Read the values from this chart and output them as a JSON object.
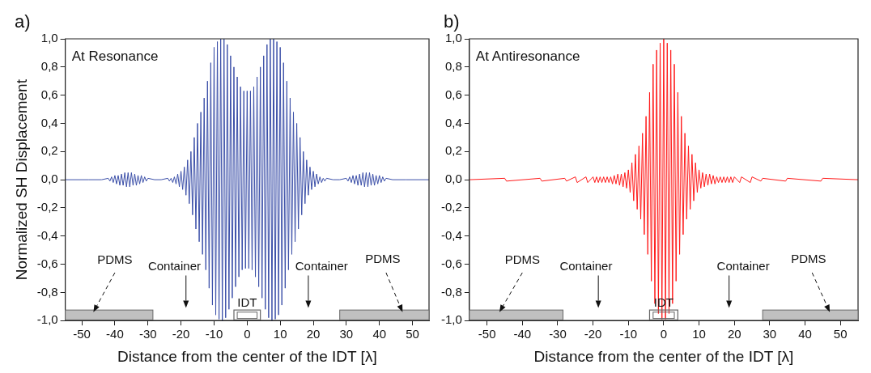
{
  "chart_data": [
    {
      "type": "line",
      "title": "a)",
      "xlabel": "Distance from the center of the IDT [λ]",
      "ylabel": "Normalized SH Displacement",
      "xlim": [
        -55,
        55
      ],
      "xticks": [
        -50,
        -40,
        -30,
        -20,
        -10,
        0,
        10,
        20,
        30,
        40,
        50
      ],
      "ylim": [
        -1,
        1
      ],
      "yticks": [
        {
          "value": -1,
          "label": "-1,0"
        },
        {
          "value": -0.8,
          "label": "-0,8"
        },
        {
          "value": -0.6,
          "label": "-0,6"
        },
        {
          "value": -0.4,
          "label": "-0,4"
        },
        {
          "value": -0.2,
          "label": "-0,2"
        },
        {
          "value": 0,
          "label": "0,0"
        },
        {
          "value": 0.2,
          "label": "0,2"
        },
        {
          "value": 0.4,
          "label": "0,4"
        },
        {
          "value": 0.6,
          "label": "0,6"
        },
        {
          "value": 0.8,
          "label": "0,8"
        },
        {
          "value": 1,
          "label": "1,0"
        }
      ],
      "series": [
        {
          "color": "#3b4fa8",
          "x": [
            -55,
            -48,
            -44,
            -42,
            -41.5,
            -41,
            -40.5,
            -40,
            -39.5,
            -39,
            -38.5,
            -38,
            -37.5,
            -37,
            -36.5,
            -36,
            -35.5,
            -35,
            -34.5,
            -34,
            -33.5,
            -33,
            -32.5,
            -32,
            -31.5,
            -31,
            -30.5,
            -30,
            -28,
            -26,
            -24,
            -23.5,
            -23,
            -22.5,
            -22,
            -21.5,
            -21,
            -20.5,
            -20,
            -19.5,
            -19,
            -18.5,
            -18,
            -17.5,
            -17,
            -16.5,
            -16,
            -15.5,
            -15,
            -14.5,
            -14,
            -13.5,
            -13,
            -12.5,
            -12,
            -11.5,
            -11,
            -10.5,
            -10,
            -9.5,
            -9,
            -8.5,
            -8,
            -7.5,
            -7,
            -6.5,
            -6,
            -5.5,
            -5,
            -4.5,
            -4,
            -3.5,
            -3,
            -2.5,
            -2,
            -1.5,
            -1,
            -0.5,
            0,
            0.5,
            1,
            1.5,
            2,
            2.5,
            3,
            3.5,
            4,
            4.5,
            5,
            5.5,
            6,
            6.5,
            7,
            7.5,
            8,
            8.5,
            9,
            9.5,
            10,
            10.5,
            11,
            11.5,
            12,
            12.5,
            13,
            13.5,
            14,
            14.5,
            15,
            15.5,
            16,
            16.5,
            17,
            17.5,
            18,
            18.5,
            19,
            19.5,
            20,
            20.5,
            21,
            21.5,
            22,
            22.5,
            23,
            23.5,
            24,
            26,
            28,
            30,
            30.5,
            31,
            31.5,
            32,
            32.5,
            33,
            33.5,
            34,
            34.5,
            35,
            35.5,
            36,
            36.5,
            37,
            37.5,
            38,
            38.5,
            39,
            39.5,
            40,
            40.5,
            41,
            41.5,
            42,
            44,
            48,
            55
          ],
          "values": [
            0,
            0,
            0,
            0.01,
            -0.01,
            0.02,
            -0.02,
            0.03,
            -0.03,
            0.03,
            -0.04,
            0.04,
            -0.04,
            0.05,
            -0.05,
            0.05,
            -0.05,
            0.05,
            -0.04,
            0.04,
            -0.04,
            0.03,
            -0.03,
            0.03,
            -0.02,
            0.02,
            -0.01,
            0.01,
            0,
            0,
            0.01,
            -0.01,
            0.01,
            -0.02,
            0.02,
            -0.03,
            0.04,
            -0.05,
            0.06,
            -0.07,
            0.09,
            -0.11,
            0.14,
            -0.17,
            0.2,
            -0.25,
            0.3,
            -0.35,
            0.4,
            -0.44,
            0.48,
            -0.53,
            0.58,
            -0.64,
            0.7,
            -0.77,
            0.83,
            -0.89,
            0.94,
            -0.96,
            0.98,
            -0.99,
            1.0,
            -1.0,
            1.0,
            -0.98,
            0.96,
            -0.92,
            0.88,
            -0.84,
            0.8,
            -0.76,
            0.73,
            -0.69,
            0.66,
            -0.64,
            0.63,
            -0.63,
            0.63,
            -0.63,
            0.63,
            -0.64,
            0.66,
            -0.69,
            0.73,
            -0.76,
            0.8,
            -0.84,
            0.88,
            -0.92,
            0.96,
            -0.98,
            1.0,
            -1.0,
            1.0,
            -0.99,
            0.98,
            -0.96,
            0.94,
            -0.89,
            0.83,
            -0.77,
            0.7,
            -0.64,
            0.58,
            -0.53,
            0.48,
            -0.44,
            0.4,
            -0.35,
            0.3,
            -0.25,
            0.2,
            -0.17,
            0.14,
            -0.11,
            0.09,
            -0.07,
            0.06,
            -0.05,
            0.04,
            -0.03,
            0.02,
            -0.02,
            0.01,
            -0.01,
            0.01,
            0,
            0,
            0.01,
            -0.01,
            0.02,
            -0.02,
            0.03,
            -0.03,
            0.03,
            -0.04,
            0.04,
            -0.04,
            0.05,
            -0.05,
            0.05,
            -0.05,
            0.05,
            -0.04,
            0.04,
            -0.04,
            0.03,
            -0.03,
            0.03,
            -0.02,
            0.02,
            -0.01,
            0.01,
            0,
            0,
            0
          ]
        }
      ],
      "annotations": [
        "At Resonance",
        "PDMS",
        "Container",
        "IDT",
        "Container",
        "PDMS"
      ]
    },
    {
      "type": "line",
      "title": "b)",
      "xlabel": "Distance from the center of the IDT [λ]",
      "xlim": [
        -55,
        55
      ],
      "xticks": [
        -50,
        -40,
        -30,
        -20,
        -10,
        0,
        10,
        20,
        30,
        40,
        50
      ],
      "ylim": [
        -1,
        1
      ],
      "yticks": [
        {
          "value": -1,
          "label": "-1,0"
        },
        {
          "value": -0.8,
          "label": "-0,8"
        },
        {
          "value": -0.6,
          "label": "-0,6"
        },
        {
          "value": -0.4,
          "label": "-0,4"
        },
        {
          "value": -0.2,
          "label": "-0,2"
        },
        {
          "value": 0,
          "label": "0,0"
        },
        {
          "value": 0.2,
          "label": "0,2"
        },
        {
          "value": 0.4,
          "label": "0,4"
        },
        {
          "value": 0.6,
          "label": "0,6"
        },
        {
          "value": 0.8,
          "label": "0,8"
        },
        {
          "value": 1,
          "label": "1,0"
        }
      ],
      "series": [
        {
          "color": "#ff1a1a",
          "x": [
            -55,
            -45,
            -44.5,
            -35,
            -34.5,
            -28,
            -27.5,
            -25,
            -24.5,
            -22,
            -21.5,
            -20,
            -19.5,
            -19,
            -18.5,
            -18,
            -17.5,
            -17,
            -16.5,
            -16,
            -15.5,
            -15,
            -14.5,
            -14,
            -13.5,
            -13,
            -12.5,
            -12,
            -11.5,
            -11,
            -10.5,
            -10,
            -9.5,
            -9,
            -8.5,
            -8,
            -7.5,
            -7,
            -6.5,
            -6,
            -5.5,
            -5,
            -4.5,
            -4,
            -3.5,
            -3,
            -2.5,
            -2,
            -1.5,
            -1,
            -0.5,
            0,
            0.5,
            1,
            1.5,
            2,
            2.5,
            3,
            3.5,
            4,
            4.5,
            5,
            5.5,
            6,
            6.5,
            7,
            7.5,
            8,
            8.5,
            9,
            9.5,
            10,
            10.5,
            11,
            11.5,
            12,
            12.5,
            13,
            13.5,
            14,
            14.5,
            15,
            15.5,
            16,
            16.5,
            17,
            17.5,
            18,
            18.5,
            19,
            19.5,
            20,
            21.5,
            22,
            24.5,
            25,
            27.5,
            28,
            34.5,
            35,
            44.5,
            45,
            55
          ],
          "values": [
            0,
            0.01,
            -0.01,
            0.01,
            -0.01,
            0.01,
            -0.01,
            0.02,
            -0.02,
            0.02,
            -0.02,
            0.02,
            -0.02,
            0.02,
            -0.02,
            0.02,
            -0.02,
            0.02,
            -0.02,
            0.02,
            -0.02,
            0.02,
            -0.03,
            0.03,
            -0.03,
            0.04,
            -0.04,
            0.04,
            -0.05,
            0.05,
            -0.06,
            0.07,
            -0.09,
            0.12,
            -0.15,
            0.18,
            -0.21,
            0.24,
            -0.28,
            0.33,
            -0.39,
            0.45,
            -0.53,
            0.62,
            -0.72,
            0.82,
            -0.88,
            0.92,
            -0.95,
            0.97,
            -0.99,
            1.0,
            -0.99,
            0.97,
            -0.95,
            0.92,
            -0.88,
            0.82,
            -0.72,
            0.62,
            -0.53,
            0.45,
            -0.39,
            0.33,
            -0.28,
            0.24,
            -0.21,
            0.18,
            -0.15,
            0.12,
            -0.09,
            0.07,
            -0.06,
            0.05,
            -0.05,
            0.04,
            -0.04,
            0.04,
            -0.03,
            0.03,
            -0.03,
            0.02,
            -0.02,
            0.02,
            -0.02,
            0.02,
            -0.02,
            0.02,
            -0.02,
            0.02,
            -0.02,
            0.02,
            -0.02,
            0.02,
            -0.02,
            0.02,
            -0.01,
            0.01,
            -0.01,
            0.01,
            -0.01,
            0.01,
            0
          ]
        }
      ],
      "annotations": [
        "At Antiresonance",
        "PDMS",
        "Container",
        "IDT",
        "Container",
        "PDMS"
      ]
    }
  ]
}
